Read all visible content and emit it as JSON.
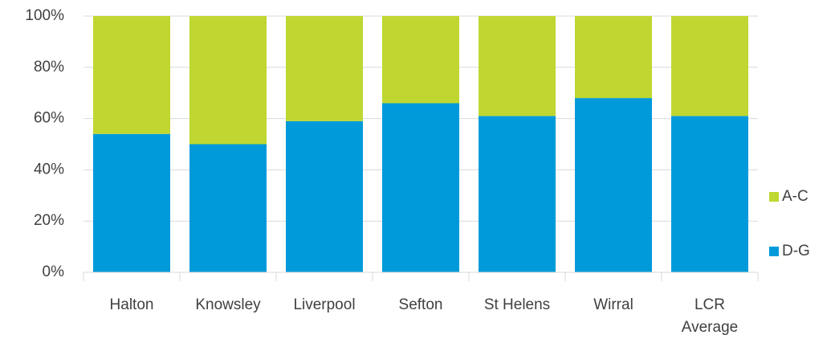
{
  "chart_data": {
    "type": "stacked_bar",
    "categories": [
      "Halton",
      "Knowsley",
      "Liverpool",
      "Sefton",
      "St Helens",
      "Wirral",
      "LCR Average"
    ],
    "series": [
      {
        "name": "D-G",
        "color": "#009ada",
        "values": [
          54,
          50,
          59,
          66,
          61,
          68,
          61
        ]
      },
      {
        "name": "A-C",
        "color": "#bfd730",
        "values": [
          46,
          50,
          41,
          34,
          39,
          32,
          39
        ]
      }
    ],
    "ylim": [
      0,
      100
    ],
    "yticks": [
      {
        "value": 0,
        "label": "0%"
      },
      {
        "value": 20,
        "label": "20%"
      },
      {
        "value": 40,
        "label": "40%"
      },
      {
        "value": 60,
        "label": "60%"
      },
      {
        "value": 80,
        "label": "80%"
      },
      {
        "value": 100,
        "label": "100%"
      }
    ],
    "grid": true,
    "legend": "right"
  }
}
